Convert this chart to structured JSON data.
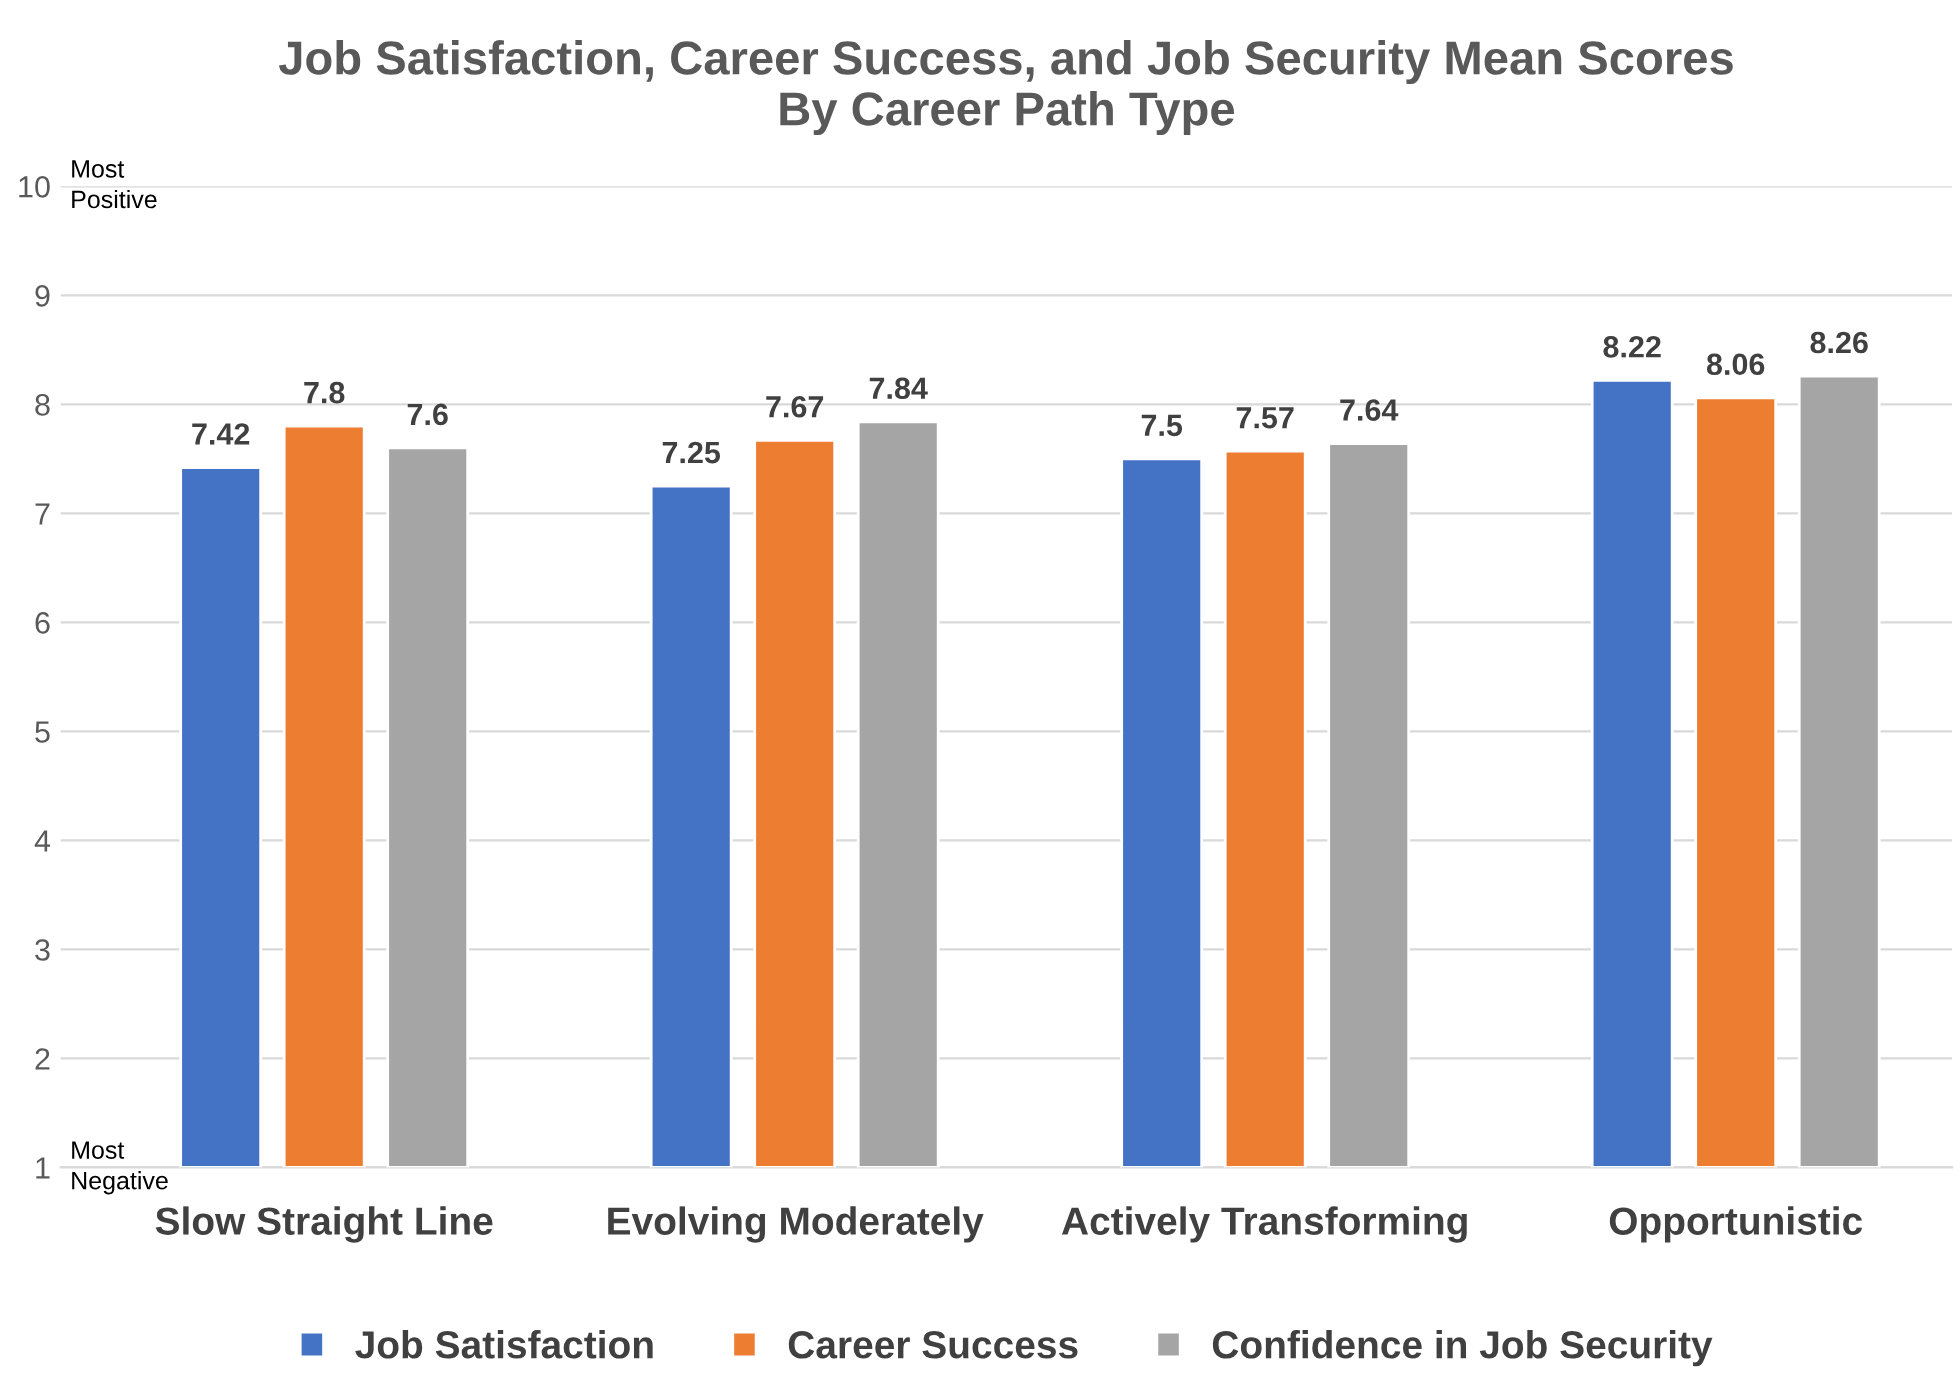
{
  "chart_data": {
    "type": "bar",
    "title": "Job Satisfaction, Career Success, and Job Security Mean Scores\nBy Career Path Type",
    "categories": [
      "Slow Straight Line",
      "Evolving Moderately",
      "Actively Transforming",
      "Opportunistic"
    ],
    "series": [
      {
        "name": "Job Satisfaction",
        "color": "#4472c4",
        "values": [
          7.42,
          7.25,
          7.5,
          8.22
        ]
      },
      {
        "name": "Career Success",
        "color": "#ed7d31",
        "values": [
          7.8,
          7.67,
          7.57,
          8.06
        ]
      },
      {
        "name": "Confidence in Job Security",
        "color": "#a5a5a5",
        "values": [
          7.6,
          7.84,
          7.64,
          8.26
        ]
      }
    ],
    "ylim": [
      1,
      10
    ],
    "yticks": [
      1,
      2,
      3,
      4,
      5,
      6,
      7,
      8,
      9,
      10
    ],
    "annotations": [
      "Most\nPositive",
      "Most\nNegative"
    ],
    "data_labels": true,
    "grid": "y",
    "legend": "bottom"
  }
}
